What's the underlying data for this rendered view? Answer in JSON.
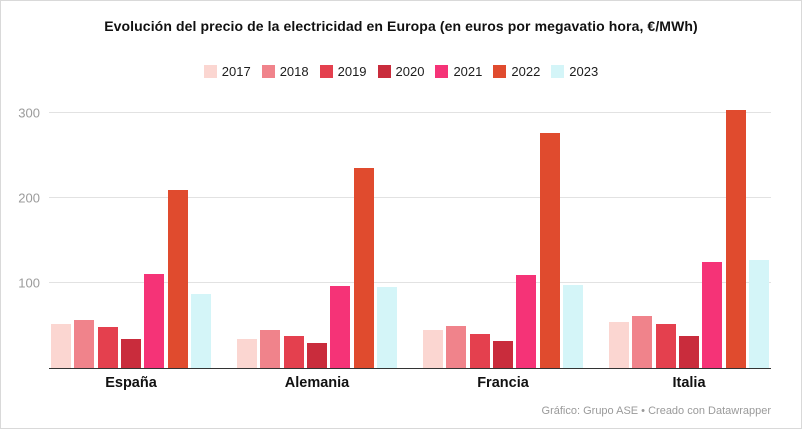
{
  "title": "Evolución del precio de la electricidad en Europa  (en euros por megavatio hora, €/MWh)",
  "footer": "Gráfico: Grupo ASE • Creado con Datawrapper",
  "chart_data": {
    "type": "bar",
    "title": "Evolución del precio de la electricidad en Europa (en euros por megavatio hora, €/MWh)",
    "categories": [
      "España",
      "Alemania",
      "Francia",
      "Italia"
    ],
    "series": [
      {
        "name": "2017",
        "color": "#fbd6d1",
        "values": [
          52,
          34,
          45,
          54
        ]
      },
      {
        "name": "2018",
        "color": "#f0838b",
        "values": [
          57,
          45,
          50,
          61
        ]
      },
      {
        "name": "2019",
        "color": "#e4404e",
        "values": [
          48,
          38,
          40,
          52
        ]
      },
      {
        "name": "2020",
        "color": "#c92c3c",
        "values": [
          34,
          30,
          32,
          38
        ]
      },
      {
        "name": "2021",
        "color": "#f53377",
        "values": [
          111,
          97,
          109,
          125
        ]
      },
      {
        "name": "2022",
        "color": "#e04b2e",
        "values": [
          210,
          235,
          276,
          303
        ]
      },
      {
        "name": "2023",
        "color": "#d4f5f8",
        "values": [
          87,
          95,
          98,
          127
        ]
      }
    ],
    "xlabel": "",
    "ylabel": "",
    "ylim": [
      0,
      300
    ],
    "yticks": [
      100,
      200,
      300
    ],
    "grid": true,
    "legend_position": "top"
  }
}
